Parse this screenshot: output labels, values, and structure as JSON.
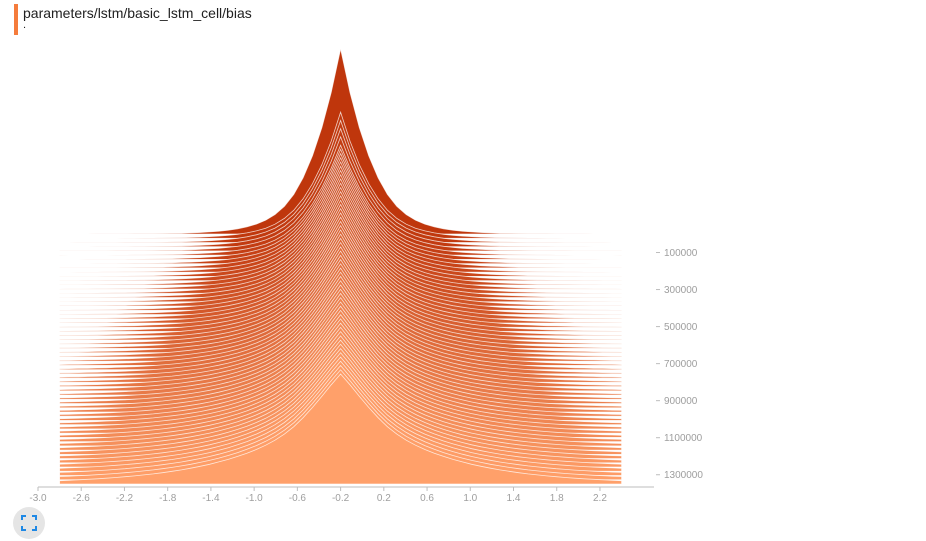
{
  "card": {
    "title": "parameters/lstm/basic_lstm_cell/bias",
    "subtitle": ".",
    "accent_color": "#f57c3c"
  },
  "expand_button": {
    "icon": "fullscreen-icon"
  },
  "chart_data": {
    "type": "histogram-offset",
    "title": "parameters/lstm/basic_lstm_cell/bias",
    "x_ticks": [
      "-3.0",
      "-2.6",
      "-2.2",
      "-1.8",
      "-1.4",
      "-1.0",
      "-0.6",
      "-0.2",
      "0.2",
      "0.6",
      "1.0",
      "1.4",
      "1.8",
      "2.2"
    ],
    "xlim": [
      -3.0,
      2.7
    ],
    "y_ticks": [
      "100000",
      "300000",
      "500000",
      "700000",
      "900000",
      "1100000",
      "1300000"
    ],
    "y_tick_values": [
      100000,
      300000,
      500000,
      700000,
      900000,
      1100000,
      1300000
    ],
    "step_range": [
      0,
      1350000
    ],
    "num_histograms": 60,
    "peak_x": -0.2,
    "color_first": "#bf360c",
    "color_last": "#ffa06a",
    "line_color": "#ffffff"
  }
}
